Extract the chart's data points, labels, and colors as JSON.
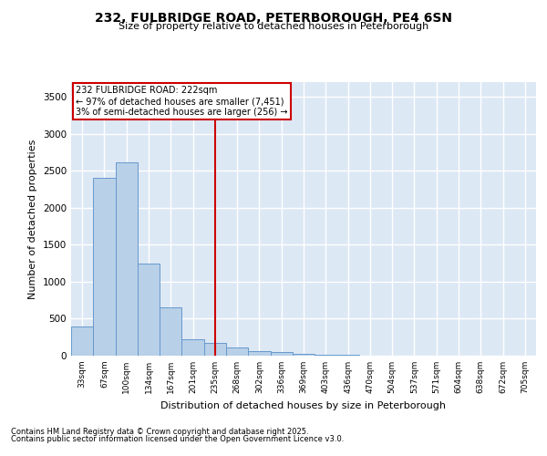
{
  "title_line1": "232, FULBRIDGE ROAD, PETERBOROUGH, PE4 6SN",
  "title_line2": "Size of property relative to detached houses in Peterborough",
  "xlabel": "Distribution of detached houses by size in Peterborough",
  "ylabel": "Number of detached properties",
  "categories": [
    "33sqm",
    "67sqm",
    "100sqm",
    "134sqm",
    "167sqm",
    "201sqm",
    "235sqm",
    "268sqm",
    "302sqm",
    "336sqm",
    "369sqm",
    "403sqm",
    "436sqm",
    "470sqm",
    "504sqm",
    "537sqm",
    "571sqm",
    "604sqm",
    "638sqm",
    "672sqm",
    "705sqm"
  ],
  "values": [
    400,
    2410,
    2610,
    1250,
    650,
    220,
    170,
    115,
    60,
    50,
    25,
    15,
    8,
    5,
    3,
    2,
    1,
    1,
    0,
    0,
    0
  ],
  "bar_color": "#b8d0e8",
  "bar_edge_color": "#6699cc",
  "vline_x_index": 6,
  "vline_color": "#cc0000",
  "annotation_line1": "232 FULBRIDGE ROAD: 222sqm",
  "annotation_line2": "← 97% of detached houses are smaller (7,451)",
  "annotation_line3": "3% of semi-detached houses are larger (256) →",
  "background_color": "#dde8f5",
  "grid_color": "#ffffff",
  "ylim": [
    0,
    3700
  ],
  "yticks": [
    0,
    500,
    1000,
    1500,
    2000,
    2500,
    3000,
    3500
  ],
  "footnote_line1": "Contains HM Land Registry data © Crown copyright and database right 2025.",
  "footnote_line2": "Contains public sector information licensed under the Open Government Licence v3.0."
}
